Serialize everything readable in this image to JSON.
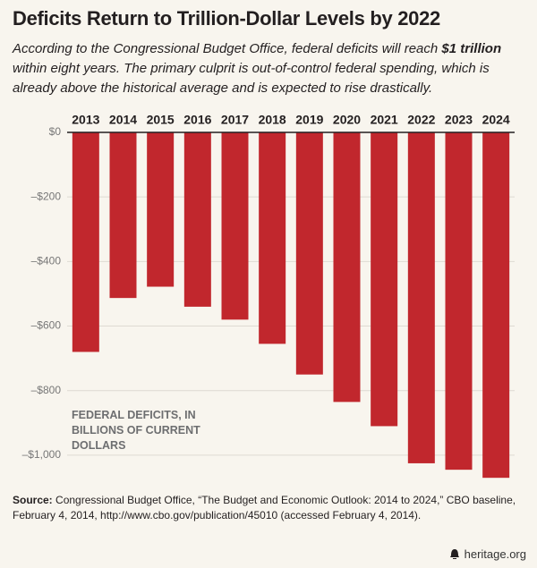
{
  "chart_data": {
    "type": "bar",
    "title": "Deficits Return to Trillion-Dollar Levels by 2022",
    "subtitle": [
      "According to the Congressional Budget Office, federal deficits will reach ",
      "$1 trillion",
      " within eight years. The primary culprit is out-of-control federal spending, which is already above the historical average and is expected to rise drastically."
    ],
    "annotation": "FEDERAL DEFICITS, IN BILLIONS OF CURRENT DOLLARS",
    "categories": [
      "2013",
      "2014",
      "2015",
      "2016",
      "2017",
      "2018",
      "2019",
      "2020",
      "2021",
      "2022",
      "2023",
      "2024"
    ],
    "values": [
      -680,
      -513,
      -478,
      -540,
      -580,
      -655,
      -750,
      -835,
      -910,
      -1025,
      -1045,
      -1070
    ],
    "color": "#c1272d",
    "ylim": [
      -1100,
      0
    ],
    "yticks": [
      {
        "value": 0,
        "label": "$0"
      },
      {
        "value": -200,
        "label": "–$200"
      },
      {
        "value": -400,
        "label": "–$400"
      },
      {
        "value": -600,
        "label": "–$600"
      },
      {
        "value": -800,
        "label": "–$800"
      },
      {
        "value": -1000,
        "label": "–$1,000"
      }
    ],
    "grid": true,
    "source": [
      "Source:",
      " Congressional Budget Office, “The Budget and Economic Outlook: 2014 to 2024,” CBO baseline, February 4, 2014, http://www.cbo.gov/publication/45010 (accessed February 4, 2014)."
    ],
    "footer": "heritage.org"
  }
}
